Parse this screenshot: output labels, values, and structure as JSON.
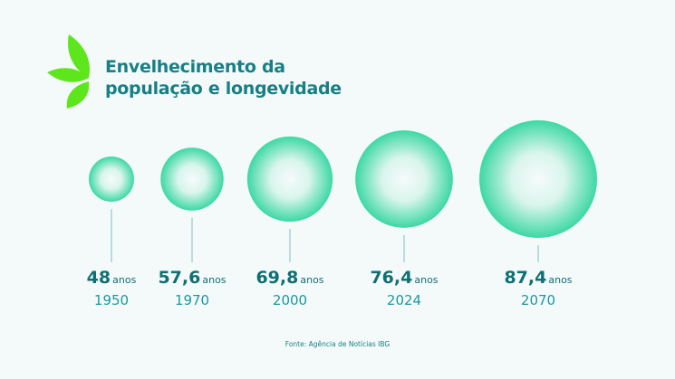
{
  "title_line1": "Envelhecimento da",
  "title_line2": "população e longevidade",
  "source": "Fonte: Agência de Notícias IBG",
  "colors": {
    "title": "#177f85",
    "leaf": "#5ee61c",
    "bubble_edge": "#3dd8a4",
    "bubble_center": "#f6fbfb",
    "line": "#7fbfc4"
  },
  "chart_data": {
    "type": "bubble",
    "title": "Envelhecimento da população e longevidade",
    "unit": "anos",
    "categories": [
      "1950",
      "1970",
      "2000",
      "2024",
      "2070"
    ],
    "values": [
      48,
      57.6,
      69.8,
      76.4,
      87.4
    ],
    "value_labels": [
      "48",
      "57,6",
      "69,8",
      "76,4",
      "87,4"
    ]
  }
}
